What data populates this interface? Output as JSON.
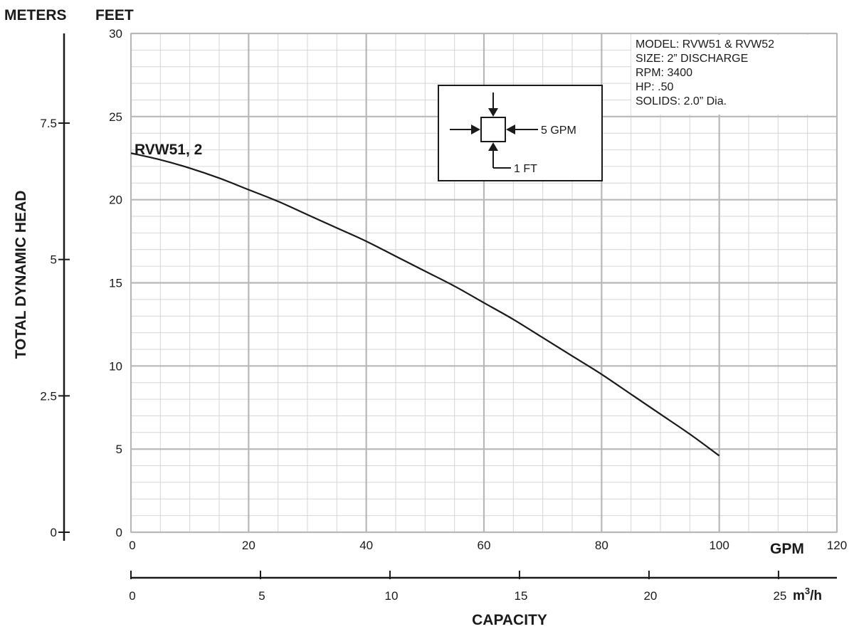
{
  "chart_data": {
    "type": "line",
    "feet_axis_label": "FEET",
    "meters_axis_label": "METERS",
    "ylabel": "TOTAL DYNAMIC HEAD",
    "xlabel": "CAPACITY",
    "gpm_unit": "GPM",
    "m3h_unit": "m",
    "m3h_unit_sup": "3",
    "m3h_unit_tail": "/h",
    "xlim_gpm": [
      0,
      120
    ],
    "ylim_feet": [
      0,
      30
    ],
    "ylim_meters": [
      0,
      9.144
    ],
    "x_minor_step_gpm": 5,
    "y_minor_step_feet": 1,
    "x_major_ticks_gpm": [
      "0",
      "20",
      "40",
      "60",
      "80",
      "100",
      "120"
    ],
    "x_ticks_m3h": [
      "0",
      "5",
      "10",
      "15",
      "20",
      "25"
    ],
    "y_ticks_feet": [
      "0",
      "5",
      "10",
      "15",
      "20",
      "25",
      "30"
    ],
    "y_ticks_meters": [
      "0",
      "2.5",
      "5",
      "7.5"
    ],
    "grid": true,
    "series": [
      {
        "name": "RVW51, 2",
        "x": [
          0,
          5,
          10,
          15,
          20,
          25,
          30,
          35,
          40,
          45,
          50,
          55,
          60,
          65,
          70,
          75,
          80,
          85,
          90,
          95,
          100
        ],
        "y": [
          22.8,
          22.4,
          21.9,
          21.3,
          20.6,
          19.9,
          19.1,
          18.3,
          17.5,
          16.6,
          15.7,
          14.8,
          13.8,
          12.8,
          11.7,
          10.6,
          9.5,
          8.3,
          7.1,
          5.9,
          4.6
        ]
      }
    ],
    "specs": [
      "MODEL: RVW51 & RVW52",
      "SIZE: 2” DISCHARGE",
      "RPM: 3400",
      "HP: .50",
      "SOLIDS: 2.0” Dia."
    ],
    "scale_key": {
      "x_step_label": "5 GPM",
      "y_step_label": "1 FT"
    },
    "colors": {
      "major_grid": "#b8b8b8",
      "minor_grid": "#d6d6d6",
      "curve": "#1a1a1a",
      "axis": "#1a1a1a"
    }
  }
}
